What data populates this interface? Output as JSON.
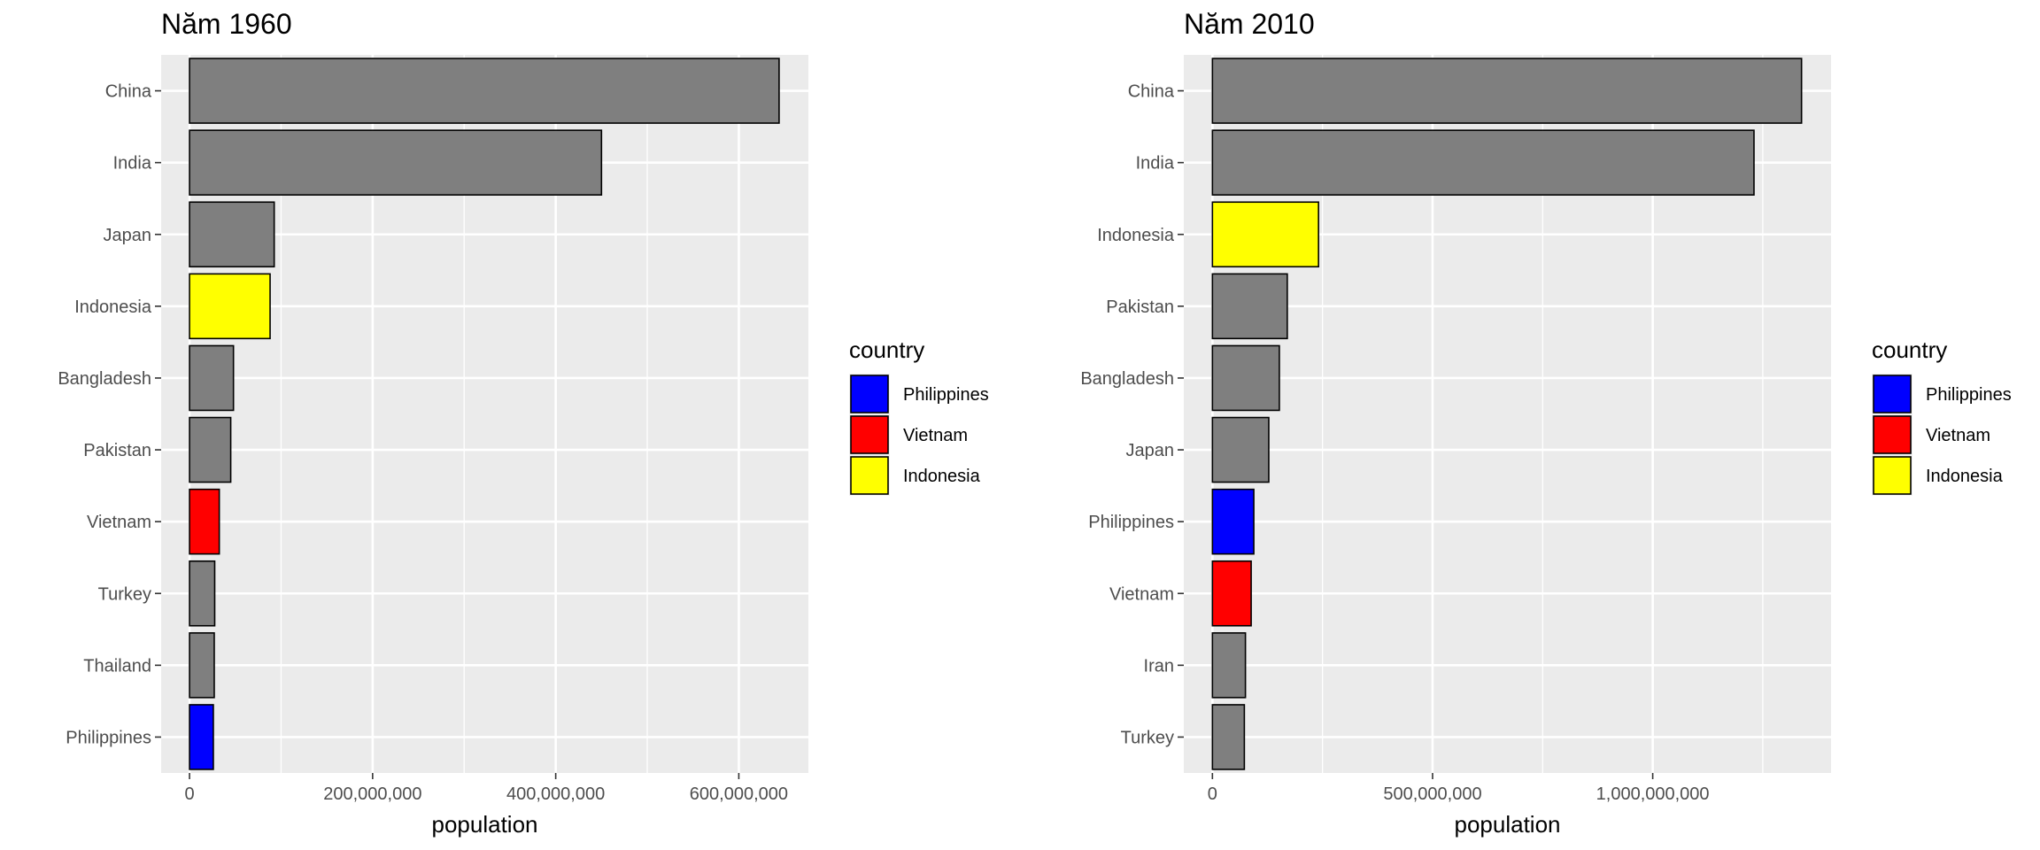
{
  "chart_data": [
    {
      "type": "bar",
      "orientation": "horizontal",
      "title": "Năm 1960",
      "xlabel": "population",
      "ylabel": "",
      "categories": [
        "China",
        "India",
        "Japan",
        "Indonesia",
        "Bangladesh",
        "Pakistan",
        "Vietnam",
        "Turkey",
        "Thailand",
        "Philippines"
      ],
      "values": [
        644000000,
        450000000,
        92500000,
        88000000,
        48000000,
        45000000,
        32500000,
        27500000,
        27000000,
        26000000
      ],
      "fills": [
        "#7f7f7f",
        "#7f7f7f",
        "#7f7f7f",
        "#ffff00",
        "#7f7f7f",
        "#7f7f7f",
        "#ff0000",
        "#7f7f7f",
        "#7f7f7f",
        "#0000ff"
      ],
      "xlim": [
        -31000000,
        676000000
      ],
      "xticks": [
        0,
        200000000,
        400000000,
        600000000
      ],
      "xticklabels": [
        "0",
        "200,000,000",
        "400,000,000",
        "600,000,000"
      ],
      "legend": {
        "title": "country",
        "items": [
          {
            "label": "Philippines",
            "color": "#0000ff"
          },
          {
            "label": "Vietnam",
            "color": "#ff0000"
          },
          {
            "label": "Indonesia",
            "color": "#ffff00"
          }
        ]
      },
      "grid": true,
      "legend_position": "right"
    },
    {
      "type": "bar",
      "orientation": "horizontal",
      "title": "Năm 2010",
      "xlabel": "population",
      "ylabel": "",
      "categories": [
        "China",
        "India",
        "Indonesia",
        "Pakistan",
        "Bangladesh",
        "Japan",
        "Philippines",
        "Vietnam",
        "Iran",
        "Turkey"
      ],
      "values": [
        1338000000,
        1230000000,
        241000000,
        170000000,
        152000000,
        128000000,
        94000000,
        88000000,
        75000000,
        72500000
      ],
      "fills": [
        "#7f7f7f",
        "#7f7f7f",
        "#ffff00",
        "#7f7f7f",
        "#7f7f7f",
        "#7f7f7f",
        "#0000ff",
        "#ff0000",
        "#7f7f7f",
        "#7f7f7f"
      ],
      "xlim": [
        -65000000,
        1405000000
      ],
      "xticks": [
        0,
        500000000,
        1000000000
      ],
      "xticklabels": [
        "0",
        "500,000,000",
        "1,000,000,000"
      ],
      "legend": {
        "title": "country",
        "items": [
          {
            "label": "Philippines",
            "color": "#0000ff"
          },
          {
            "label": "Vietnam",
            "color": "#ff0000"
          },
          {
            "label": "Indonesia",
            "color": "#ffff00"
          }
        ]
      },
      "grid": true,
      "legend_position": "right"
    }
  ]
}
